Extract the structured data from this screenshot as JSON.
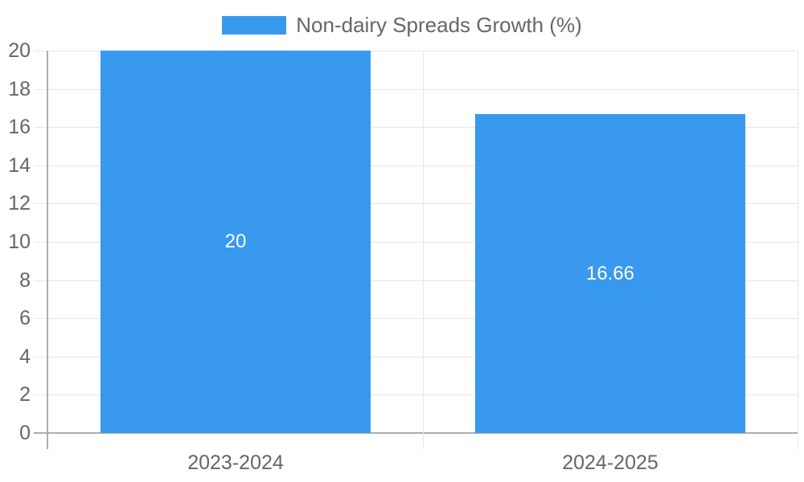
{
  "chart_data": {
    "type": "bar",
    "title": "Non-dairy Spreads Growth (%)",
    "legend_position": "top",
    "categories": [
      "2023-2024",
      "2024-2025"
    ],
    "series": [
      {
        "name": "Non-dairy Spreads Growth (%)",
        "values": [
          20,
          16.66
        ],
        "value_labels": [
          "20",
          "16.66"
        ]
      }
    ],
    "xlabel": "",
    "ylabel": "",
    "ylim": [
      0,
      20
    ],
    "ytick_step": 2,
    "yticks": [
      0,
      2,
      4,
      6,
      8,
      10,
      12,
      14,
      16,
      18,
      20
    ],
    "grid": true,
    "colors": {
      "bar": "#3899ef",
      "gridline": "#e6e6e6",
      "axis_line": "#adadad",
      "tick_text": "#666666",
      "value_label_text": "#ffffff",
      "background": "#ffffff"
    }
  }
}
